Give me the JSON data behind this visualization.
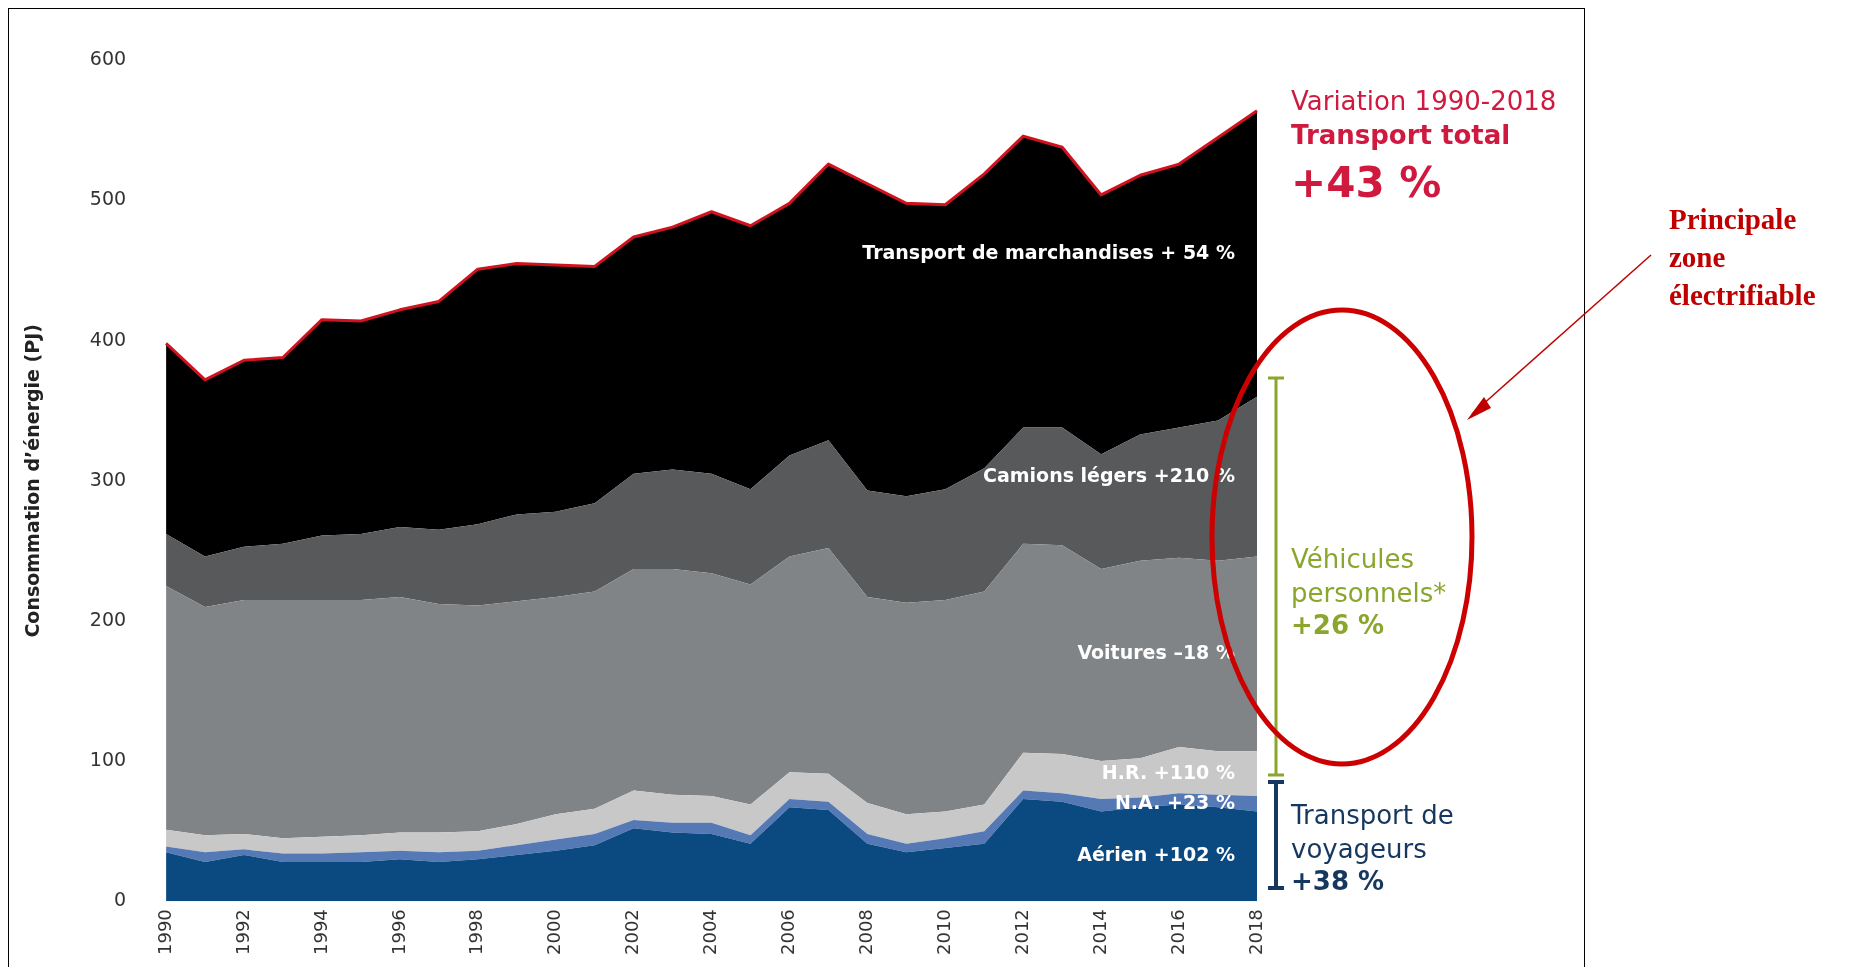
{
  "chart_data": {
    "type": "area",
    "stacked": true,
    "ylabel": "Consommation d’énergie (PJ)",
    "ylim": [
      0,
      600
    ],
    "yticks": [
      0,
      100,
      200,
      300,
      400,
      500,
      600
    ],
    "grid": false,
    "legend": false,
    "categories": [
      "1990",
      null,
      "1992",
      null,
      "1994",
      null,
      "1996",
      null,
      "1998",
      null,
      "2000",
      null,
      "2002",
      null,
      "2004",
      null,
      "2006",
      null,
      "2008",
      null,
      "2010",
      null,
      "2012",
      null,
      "2014",
      null,
      "2016",
      null,
      "2018"
    ],
    "series": [
      {
        "name": "Aérien +102 %",
        "color": "#0b4a80",
        "values": [
          35,
          28,
          33,
          28,
          28,
          28,
          30,
          28,
          30,
          33,
          36,
          40,
          52,
          49,
          48,
          41,
          67,
          65,
          41,
          35,
          38,
          41,
          73,
          71,
          64,
          67,
          69,
          67,
          64
        ]
      },
      {
        "name": "N.A. +23 %",
        "color": "#5579b5",
        "values": [
          4,
          7,
          4,
          6,
          6,
          7,
          6,
          7,
          6,
          7,
          8,
          8,
          6,
          7,
          8,
          6,
          6,
          6,
          7,
          6,
          7,
          9,
          6,
          6,
          9,
          7,
          8,
          9,
          11
        ]
      },
      {
        "name": "H.R. +110 %",
        "color": "#c8c8c8",
        "values": [
          12,
          12,
          11,
          11,
          12,
          12,
          13,
          14,
          14,
          15,
          18,
          18,
          21,
          20,
          19,
          22,
          19,
          20,
          22,
          21,
          19,
          19,
          27,
          28,
          27,
          28,
          33,
          31,
          32
        ]
      },
      {
        "name": "Voitures –18 %",
        "color": "#818486",
        "values": [
          174,
          163,
          167,
          170,
          169,
          168,
          168,
          163,
          161,
          159,
          155,
          155,
          158,
          161,
          159,
          157,
          154,
          161,
          147,
          151,
          151,
          152,
          149,
          149,
          137,
          141,
          135,
          136,
          139
        ]
      },
      {
        "name": "Camions légers +210 %",
        "color": "#58595b",
        "values": [
          37,
          36,
          38,
          40,
          46,
          47,
          50,
          53,
          58,
          62,
          61,
          63,
          68,
          71,
          71,
          68,
          72,
          77,
          76,
          76,
          79,
          88,
          83,
          84,
          82,
          90,
          93,
          100,
          114
        ]
      },
      {
        "name": "Transport de marchandises + 54 %",
        "color": "#000000",
        "values": [
          136,
          126,
          133,
          133,
          154,
          152,
          155,
          163,
          182,
          179,
          176,
          169,
          169,
          173,
          187,
          188,
          180,
          197,
          219,
          209,
          203,
          210,
          208,
          200,
          185,
          185,
          188,
          202,
          204
        ]
      }
    ],
    "annotations": [
      "Variation 1990-2018",
      "Transport total",
      "+43 %",
      "Véhicules personnels*",
      "+26 %",
      "Transport de voyageurs",
      "+38 %",
      "Principale zone électrifiable"
    ]
  }
}
